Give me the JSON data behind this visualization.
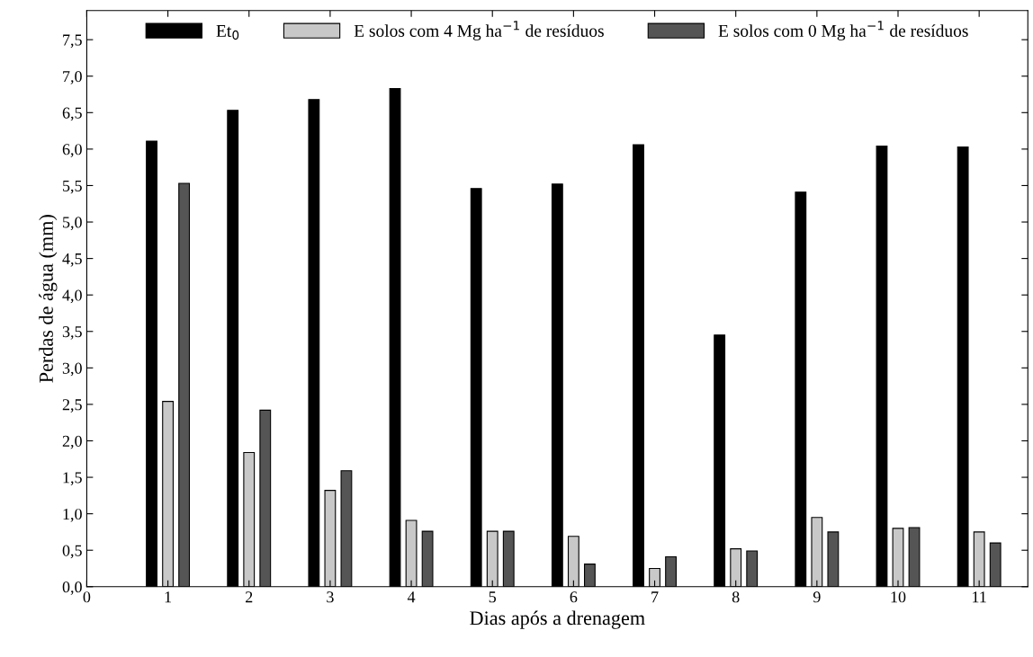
{
  "chart_data": {
    "type": "bar",
    "xlabel": "Dias após a drenagem",
    "ylabel": "Perdas de água (mm)",
    "x": [
      1,
      2,
      3,
      4,
      5,
      6,
      7,
      8,
      9,
      10,
      11
    ],
    "series": [
      {
        "name": "Et$_{0}$",
        "color": "#000000",
        "values": [
          6.11,
          6.53,
          6.68,
          6.83,
          5.46,
          5.52,
          6.06,
          3.45,
          5.41,
          6.04,
          6.03
        ]
      },
      {
        "name": "E solos com 4 Mg ha$^{−1}$ de resíduos",
        "color": "#c8c8c8",
        "values": [
          2.54,
          1.84,
          1.32,
          0.91,
          0.76,
          0.69,
          0.25,
          0.52,
          0.95,
          0.8,
          0.75
        ]
      },
      {
        "name": "E solos com 0 Mg ha$^{−1}$ de resíduos",
        "color": "#555555",
        "values": [
          5.53,
          2.42,
          1.59,
          0.76,
          0.76,
          0.31,
          0.41,
          0.49,
          0.75,
          0.81,
          0.6
        ]
      }
    ],
    "xlim": [
      0,
      11.6
    ],
    "xticks": [
      0,
      1,
      2,
      3,
      4,
      5,
      6,
      7,
      8,
      9,
      10,
      11
    ],
    "ylim": [
      0,
      7.9
    ],
    "yticks": [
      {
        "value": 0,
        "label": "0,0"
      },
      {
        "value": 0.5,
        "label": "0,5"
      },
      {
        "value": 1,
        "label": "1,0"
      },
      {
        "value": 1.5,
        "label": "1,5"
      },
      {
        "value": 2,
        "label": "2,0"
      },
      {
        "value": 2.5,
        "label": "2,5"
      },
      {
        "value": 3,
        "label": "3,0"
      },
      {
        "value": 3.5,
        "label": "3,5"
      },
      {
        "value": 4,
        "label": "4,0"
      },
      {
        "value": 4.5,
        "label": "4,5"
      },
      {
        "value": 5,
        "label": "5,0"
      },
      {
        "value": 5.5,
        "label": "5,5"
      },
      {
        "value": 6,
        "label": "6,0"
      },
      {
        "value": 6.5,
        "label": "6,5"
      },
      {
        "value": 7,
        "label": "7,0"
      },
      {
        "value": 7.5,
        "label": "7,5"
      }
    ],
    "legend": "top",
    "grid": false
  }
}
